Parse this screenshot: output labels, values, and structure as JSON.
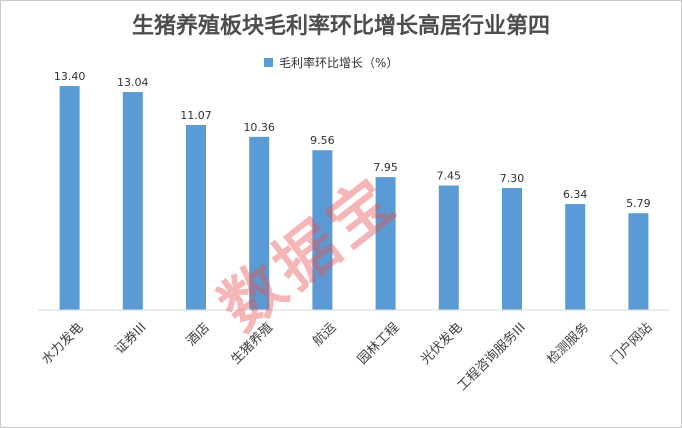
{
  "chart_data": {
    "type": "bar",
    "title": "生猪养殖板块毛利率环比增长高居行业第四",
    "categories": [
      "水力发电",
      "证券III",
      "酒店",
      "生猪养殖",
      "航运",
      "园林工程",
      "光伏发电",
      "工程咨询服务III",
      "检测服务",
      "门户网站"
    ],
    "series": [
      {
        "name": "毛利率环比增长（%）",
        "values": [
          13.4,
          13.04,
          11.07,
          10.36,
          9.56,
          7.95,
          7.45,
          7.3,
          6.34,
          5.79
        ],
        "color": "#5b9bd5"
      }
    ],
    "data_labels": [
      "13.40",
      "13.04",
      "11.07",
      "10.36",
      "9.56",
      "7.95",
      "7.45",
      "7.30",
      "6.34",
      "5.79"
    ],
    "ylim": [
      0,
      14
    ],
    "grid": false,
    "legend": "top-center",
    "axis_color": "#d9d9d9"
  },
  "watermark": "数据宝"
}
